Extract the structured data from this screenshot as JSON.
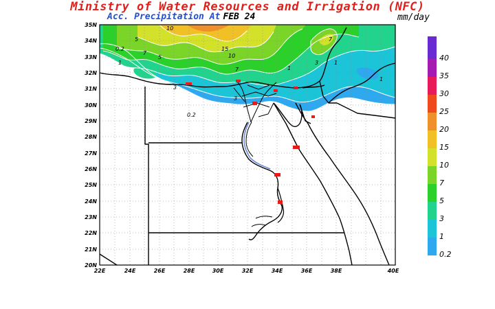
{
  "header": {
    "title": "Ministry of Water Resources and Irrigation (NFC)",
    "subtitle_label": "Acc. Precipitation  At",
    "subtitle_date": "FEB 24",
    "units": "mm/day"
  },
  "axes": {
    "lat_labels": [
      "35N",
      "34N",
      "33N",
      "32N",
      "31N",
      "30N",
      "29N",
      "28N",
      "27N",
      "26N",
      "25N",
      "24N",
      "23N",
      "22N",
      "21N",
      "20N"
    ],
    "lon_labels": [
      "22E",
      "24E",
      "26E",
      "28E",
      "30E",
      "32E",
      "34E",
      "36E",
      "38E",
      "40E"
    ]
  },
  "colorbar": {
    "levels": [
      "0.2",
      "1",
      "3",
      "5",
      "7",
      "10",
      "15",
      "20",
      "25",
      "30",
      "35",
      "40"
    ],
    "colors": [
      "#2ea8ee",
      "#1cc4d8",
      "#22d38e",
      "#2bd02b",
      "#7ad528",
      "#d4e12a",
      "#f0c026",
      "#f0902a",
      "#ef4a1e",
      "#e81a5a",
      "#a51ab0",
      "#6a2ad2"
    ]
  },
  "contour_labels": [
    "10",
    "15",
    "10",
    "7",
    "5",
    "3",
    "1",
    "0.2",
    "0.2",
    "1",
    "3",
    "5",
    "7",
    "3",
    "1",
    "1",
    "7"
  ]
}
